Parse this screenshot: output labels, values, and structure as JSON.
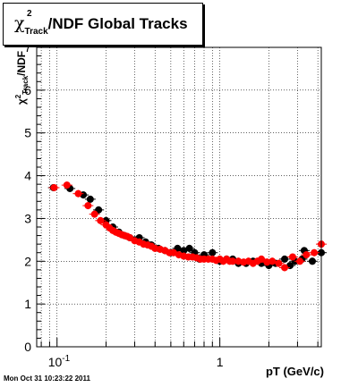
{
  "title": {
    "chi": "χ",
    "sup": "2",
    "sub": "Track",
    "rest": "/NDF  Global Tracks"
  },
  "ylabel": {
    "chi": "χ",
    "sup": "2",
    "sub": "Track",
    "rest": "/NDF"
  },
  "xlabel": "pT (GeV/c)",
  "timestamp": "Mon Oct 31 10:23:22 2011",
  "chart_data": {
    "type": "scatter",
    "xlabel": "pT (GeV/c)",
    "ylabel": "χ²Track/NDF",
    "xscale": "log",
    "xlim": [
      0.075,
      4.2
    ],
    "ylim": [
      0,
      7
    ],
    "grid": true,
    "x_tick_labels": [
      "10^-1",
      "1"
    ],
    "y_tick_labels": [
      "0",
      "1",
      "2",
      "3",
      "4",
      "5",
      "6",
      "7"
    ],
    "series": [
      {
        "color": "#000000",
        "x": [
          0.095,
          0.12,
          0.145,
          0.16,
          0.18,
          0.2,
          0.22,
          0.24,
          0.26,
          0.28,
          0.3,
          0.32,
          0.35,
          0.38,
          0.42,
          0.46,
          0.5,
          0.55,
          0.6,
          0.65,
          0.7,
          0.75,
          0.8,
          0.9,
          1.0,
          1.1,
          1.2,
          1.3,
          1.45,
          1.6,
          1.8,
          2.0,
          2.2,
          2.5,
          2.9,
          3.3,
          3.7,
          4.2,
          3.2,
          2.7
        ],
        "y": [
          3.72,
          3.7,
          3.55,
          3.45,
          3.2,
          2.95,
          2.8,
          2.68,
          2.6,
          2.55,
          2.5,
          2.55,
          2.45,
          2.38,
          2.3,
          2.25,
          2.2,
          2.3,
          2.25,
          2.3,
          2.2,
          2.05,
          2.15,
          2.2,
          2.0,
          2.05,
          2.05,
          1.95,
          1.95,
          2.0,
          1.95,
          1.9,
          1.95,
          2.05,
          2.0,
          2.25,
          2.0,
          2.2,
          2.05,
          1.9
        ]
      },
      {
        "color": "#ff0000",
        "x": [
          0.096,
          0.115,
          0.135,
          0.155,
          0.17,
          0.185,
          0.2,
          0.21,
          0.22,
          0.23,
          0.24,
          0.25,
          0.26,
          0.27,
          0.28,
          0.3,
          0.32,
          0.34,
          0.36,
          0.38,
          0.4,
          0.43,
          0.46,
          0.49,
          0.52,
          0.56,
          0.6,
          0.64,
          0.68,
          0.72,
          0.76,
          0.8,
          0.85,
          0.9,
          0.95,
          1.0,
          1.05,
          1.1,
          1.15,
          1.2,
          1.3,
          1.4,
          1.5,
          1.6,
          1.7,
          1.8,
          1.95,
          2.1,
          2.3,
          2.5,
          2.8,
          3.1,
          3.4,
          3.8,
          4.2
        ],
        "y": [
          3.72,
          3.78,
          3.58,
          3.3,
          3.1,
          2.95,
          2.85,
          2.78,
          2.72,
          2.68,
          2.65,
          2.62,
          2.6,
          2.58,
          2.55,
          2.48,
          2.45,
          2.4,
          2.38,
          2.35,
          2.3,
          2.28,
          2.25,
          2.2,
          2.2,
          2.15,
          2.12,
          2.1,
          2.1,
          2.08,
          2.05,
          2.05,
          2.05,
          2.05,
          2.02,
          2.05,
          2.0,
          2.05,
          2.0,
          2.0,
          2.0,
          1.98,
          2.0,
          1.95,
          2.0,
          2.05,
          1.98,
          2.0,
          1.95,
          1.85,
          2.1,
          2.0,
          2.15,
          2.2,
          2.4
        ]
      }
    ]
  }
}
